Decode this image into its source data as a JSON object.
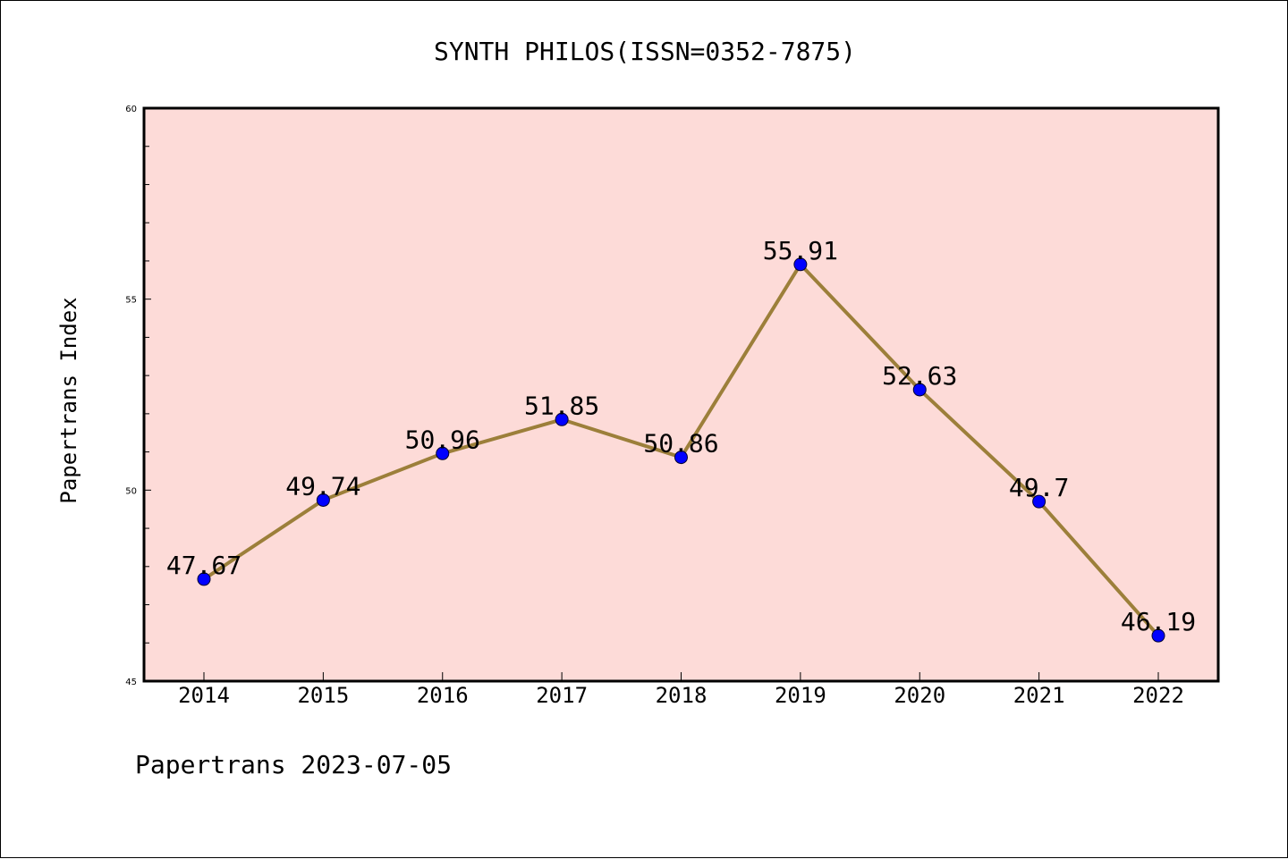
{
  "chart_data": {
    "type": "line",
    "title": "SYNTH PHILOS(ISSN=0352-7875)",
    "ylabel": "Papertrans Index",
    "xlabel": "",
    "footer": "Papertrans 2023-07-05",
    "categories": [
      "2014",
      "2015",
      "2016",
      "2017",
      "2018",
      "2019",
      "2020",
      "2021",
      "2022"
    ],
    "values": [
      47.67,
      49.74,
      50.96,
      51.85,
      50.86,
      55.91,
      52.63,
      49.7,
      46.19
    ],
    "data_labels": [
      "47.67",
      "49.74",
      "50.96",
      "51.85",
      "50.86",
      "55.91",
      "52.63",
      "49.7",
      "46.19"
    ],
    "ylim": [
      45,
      60
    ],
    "yticks": [
      45,
      50,
      55,
      60
    ],
    "y_minor_step": 1,
    "grid": false,
    "colors": {
      "plot_background": "#fddbd8",
      "line": "#9c7f3a",
      "marker": "#0000ff",
      "axis": "#000000"
    }
  }
}
